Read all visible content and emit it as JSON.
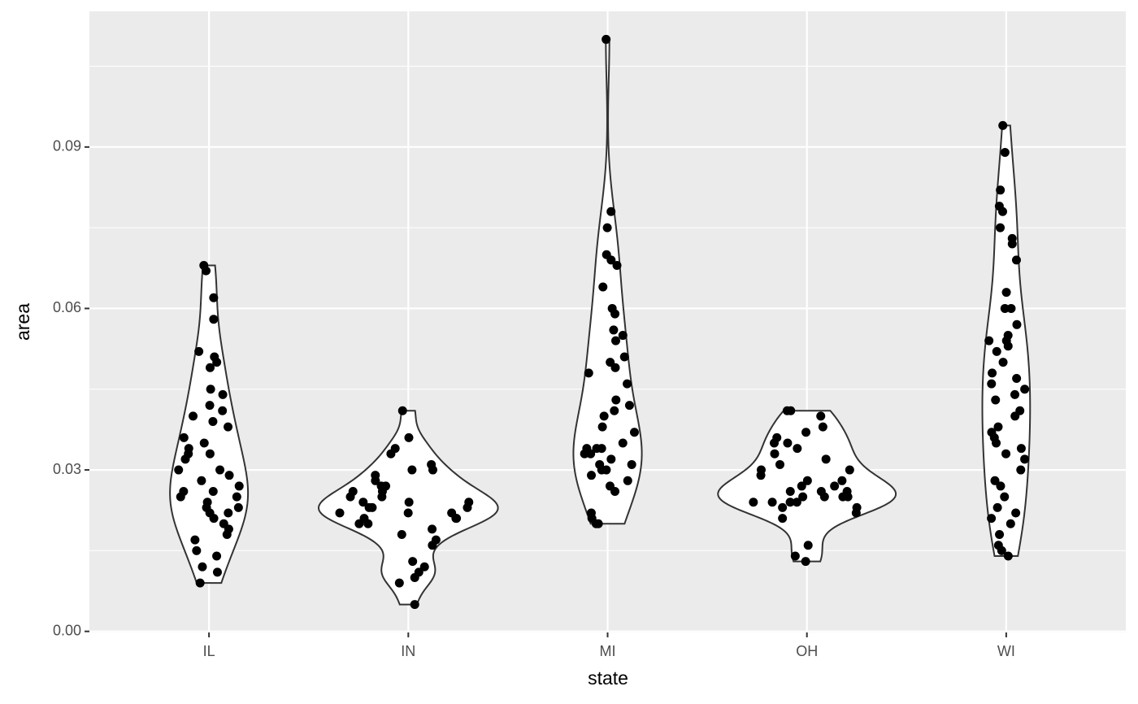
{
  "chart_data": {
    "type": "violin",
    "x_label": "state",
    "y_label": "area",
    "categories": [
      "IL",
      "IN",
      "MI",
      "OH",
      "WI"
    ],
    "values": [
      [
        0.068,
        0.067,
        0.062,
        0.058,
        0.052,
        0.051,
        0.05,
        0.049,
        0.045,
        0.044,
        0.042,
        0.041,
        0.04,
        0.039,
        0.038,
        0.036,
        0.035,
        0.034,
        0.033,
        0.033,
        0.032,
        0.03,
        0.03,
        0.029,
        0.028,
        0.027,
        0.026,
        0.026,
        0.025,
        0.025,
        0.024,
        0.023,
        0.023,
        0.022,
        0.022,
        0.021,
        0.02,
        0.019,
        0.018,
        0.017,
        0.015,
        0.014,
        0.012,
        0.011,
        0.009
      ],
      [
        0.041,
        0.036,
        0.034,
        0.033,
        0.031,
        0.03,
        0.03,
        0.029,
        0.028,
        0.027,
        0.027,
        0.026,
        0.026,
        0.025,
        0.025,
        0.024,
        0.024,
        0.024,
        0.023,
        0.023,
        0.023,
        0.022,
        0.022,
        0.022,
        0.021,
        0.021,
        0.021,
        0.02,
        0.02,
        0.019,
        0.018,
        0.017,
        0.016,
        0.013,
        0.012,
        0.011,
        0.01,
        0.009,
        0.005
      ],
      [
        0.11,
        0.078,
        0.075,
        0.07,
        0.069,
        0.068,
        0.064,
        0.06,
        0.059,
        0.056,
        0.055,
        0.054,
        0.051,
        0.05,
        0.049,
        0.048,
        0.046,
        0.043,
        0.042,
        0.041,
        0.04,
        0.038,
        0.037,
        0.035,
        0.034,
        0.034,
        0.034,
        0.033,
        0.033,
        0.032,
        0.031,
        0.031,
        0.03,
        0.03,
        0.029,
        0.028,
        0.027,
        0.026,
        0.022,
        0.021,
        0.02,
        0.02
      ],
      [
        0.041,
        0.041,
        0.04,
        0.038,
        0.037,
        0.036,
        0.035,
        0.035,
        0.034,
        0.033,
        0.032,
        0.031,
        0.03,
        0.03,
        0.029,
        0.028,
        0.028,
        0.027,
        0.027,
        0.026,
        0.026,
        0.026,
        0.025,
        0.025,
        0.025,
        0.025,
        0.024,
        0.024,
        0.024,
        0.024,
        0.023,
        0.023,
        0.022,
        0.021,
        0.016,
        0.014,
        0.013
      ],
      [
        0.094,
        0.089,
        0.082,
        0.079,
        0.078,
        0.075,
        0.073,
        0.072,
        0.069,
        0.063,
        0.06,
        0.06,
        0.057,
        0.055,
        0.054,
        0.054,
        0.053,
        0.052,
        0.05,
        0.048,
        0.047,
        0.046,
        0.045,
        0.044,
        0.043,
        0.041,
        0.04,
        0.038,
        0.037,
        0.036,
        0.035,
        0.034,
        0.033,
        0.032,
        0.03,
        0.028,
        0.027,
        0.025,
        0.023,
        0.022,
        0.021,
        0.02,
        0.018,
        0.016,
        0.015,
        0.014
      ]
    ],
    "point_color": "#000000",
    "violin_fill": "#ffffff",
    "violin_stroke": "#333333",
    "ylim": [
      -0.0002,
      0.1152
    ],
    "yticks": [
      {
        "value": 0,
        "label": "0.00"
      },
      0.03,
      0.06,
      0.09
    ],
    "minor_yticks": [
      0.015,
      0.045,
      0.075,
      0.105
    ],
    "grid": true
  }
}
